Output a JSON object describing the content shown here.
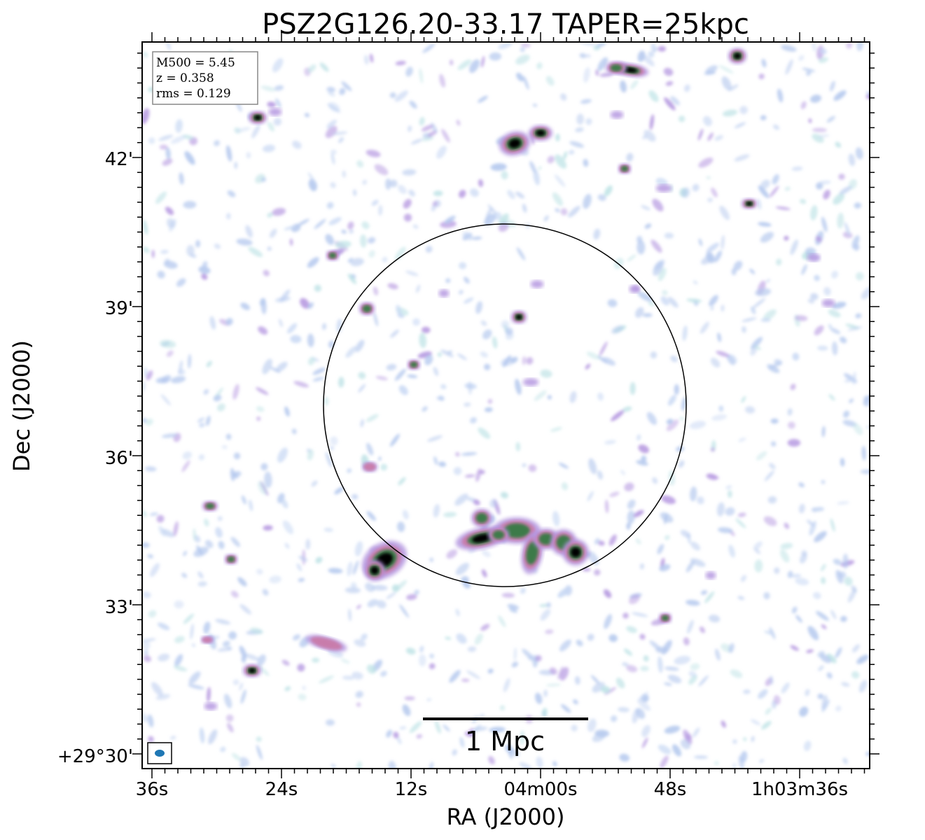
{
  "title": "PSZ2G126.20-33.17 TAPER=25kpc",
  "axes": {
    "xlabel": "RA (J2000)",
    "ylabel": "Dec (J2000)",
    "x_ticks": [
      "36s",
      "24s",
      "12s",
      "04m00s",
      "48s",
      "1h03m36s"
    ],
    "y_ticks": [
      "+29°30'",
      "33'",
      "36'",
      "39'",
      "42'"
    ]
  },
  "info_box": {
    "mass": "M500 = 5.45",
    "redshift": "z = 0.358",
    "rms": "rms = 0.129"
  },
  "scale_bar": {
    "label": "1 Mpc"
  },
  "colors": {
    "faint_blue": "#b4c8ee",
    "faint_purple": "#b496e0",
    "mid_pink": "#c97aa8",
    "mid_green": "#3e7a4a",
    "peak_black": "#000000",
    "beam": "#1f77b4"
  }
}
